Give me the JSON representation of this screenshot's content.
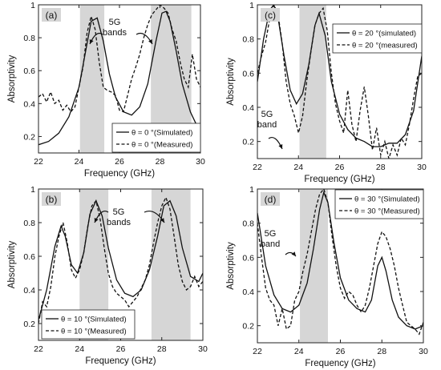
{
  "chart_data": [
    {
      "type": "line",
      "panel_label": "(a)",
      "xlabel": "Frequency (GHz)",
      "ylabel": "Absorptivity",
      "xlim": [
        22,
        30
      ],
      "ylim": [
        0.1,
        1.0
      ],
      "xticks": [
        22,
        24,
        26,
        28,
        30
      ],
      "yticks": [
        0.2,
        0.4,
        0.6,
        0.8,
        1
      ],
      "grid": false,
      "legend_position": "bottom-right",
      "bands": [
        [
          24.05,
          25.25
        ],
        [
          27.55,
          29.55
        ]
      ],
      "annotation": [
        "5G",
        "bands"
      ],
      "series": [
        {
          "name": "θ = 0 °(Simulated)",
          "style": "solid",
          "x": [
            22,
            22.5,
            23,
            23.5,
            24,
            24.3,
            24.6,
            24.9,
            25.2,
            25.5,
            25.8,
            26.2,
            26.6,
            27,
            27.4,
            27.8,
            28.1,
            28.3,
            28.5,
            28.8,
            29.1,
            29.5,
            30
          ],
          "y": [
            0.15,
            0.17,
            0.22,
            0.32,
            0.5,
            0.7,
            0.9,
            0.92,
            0.78,
            0.58,
            0.44,
            0.35,
            0.33,
            0.38,
            0.52,
            0.78,
            0.95,
            0.96,
            0.9,
            0.72,
            0.52,
            0.35,
            0.22
          ]
        },
        {
          "name": "θ = 0 °(Measured)",
          "style": "dashed",
          "x": [
            22,
            22.2,
            22.4,
            22.6,
            22.8,
            23,
            23.2,
            23.4,
            23.6,
            23.8,
            24,
            24.2,
            24.4,
            24.6,
            24.8,
            25,
            25.2,
            25.4,
            25.6,
            25.8,
            26,
            26.2,
            26.4,
            26.6,
            26.8,
            27,
            27.2,
            27.4,
            27.6,
            27.8,
            28,
            28.2,
            28.4,
            28.6,
            28.8,
            29,
            29.2,
            29.4,
            29.6,
            29.8,
            30
          ],
          "y": [
            0.44,
            0.46,
            0.41,
            0.47,
            0.4,
            0.42,
            0.36,
            0.39,
            0.35,
            0.38,
            0.5,
            0.62,
            0.83,
            0.93,
            0.85,
            0.65,
            0.5,
            0.48,
            0.47,
            0.45,
            0.36,
            0.35,
            0.45,
            0.55,
            0.62,
            0.7,
            0.8,
            0.88,
            0.94,
            0.97,
            1.0,
            0.98,
            0.95,
            0.85,
            0.78,
            0.65,
            0.55,
            0.5,
            0.7,
            0.55,
            0.5
          ]
        }
      ]
    },
    {
      "type": "line",
      "panel_label": "(b)",
      "xlabel": "Frequency (GHz)",
      "ylabel": "Absorptivity",
      "xlim": [
        22,
        30
      ],
      "ylim": [
        0.1,
        1.0
      ],
      "xticks": [
        22,
        24,
        26,
        28,
        30
      ],
      "yticks": [
        0.2,
        0.4,
        0.6,
        0.8,
        1
      ],
      "grid": false,
      "legend_position": "bottom-left",
      "bands": [
        [
          24.0,
          25.4
        ],
        [
          27.5,
          29.4
        ]
      ],
      "annotation": [
        "5G",
        "bands"
      ],
      "series": [
        {
          "name": "θ = 10 °(Simulated)",
          "style": "solid",
          "x": [
            22,
            22.4,
            22.8,
            23.1,
            23.3,
            23.6,
            23.9,
            24.2,
            24.5,
            24.8,
            25.1,
            25.4,
            25.8,
            26.2,
            26.6,
            27,
            27.4,
            27.8,
            28.1,
            28.4,
            28.7,
            29,
            29.4,
            29.8,
            30
          ],
          "y": [
            0.22,
            0.4,
            0.66,
            0.78,
            0.72,
            0.55,
            0.5,
            0.62,
            0.85,
            0.93,
            0.84,
            0.65,
            0.46,
            0.38,
            0.36,
            0.4,
            0.52,
            0.72,
            0.9,
            0.93,
            0.84,
            0.65,
            0.48,
            0.45,
            0.5
          ]
        },
        {
          "name": "θ = 10 °(Measured)",
          "style": "dashed",
          "x": [
            22,
            22.2,
            22.4,
            22.6,
            22.8,
            23,
            23.2,
            23.4,
            23.6,
            23.8,
            24,
            24.2,
            24.4,
            24.6,
            24.8,
            25,
            25.2,
            25.4,
            25.6,
            25.8,
            26,
            26.2,
            26.4,
            26.6,
            26.8,
            27,
            27.2,
            27.4,
            27.6,
            27.8,
            28,
            28.2,
            28.4,
            28.6,
            28.8,
            29,
            29.2,
            29.4,
            29.6,
            29.8,
            30
          ],
          "y": [
            0.2,
            0.33,
            0.3,
            0.42,
            0.6,
            0.72,
            0.8,
            0.68,
            0.52,
            0.47,
            0.52,
            0.62,
            0.78,
            0.9,
            0.93,
            0.82,
            0.65,
            0.5,
            0.42,
            0.38,
            0.36,
            0.34,
            0.3,
            0.33,
            0.36,
            0.41,
            0.46,
            0.55,
            0.68,
            0.8,
            0.9,
            0.95,
            0.88,
            0.72,
            0.55,
            0.45,
            0.4,
            0.42,
            0.48,
            0.42,
            0.45
          ]
        }
      ]
    },
    {
      "type": "line",
      "panel_label": "(c)",
      "xlabel": "Frequency (GHz)",
      "ylabel": "Absorptivity",
      "xlim": [
        22,
        30
      ],
      "ylim": [
        0.1,
        1.0
      ],
      "xticks": [
        22,
        24,
        26,
        28,
        30
      ],
      "yticks": [
        0.2,
        0.4,
        0.6,
        0.8,
        1
      ],
      "grid": false,
      "legend_position": "top-right",
      "bands": [
        [
          24.05,
          25.35
        ]
      ],
      "annotation": [
        "5G",
        "band"
      ],
      "series": [
        {
          "name": "θ = 20 °(simulated)",
          "style": "solid",
          "x": [
            22,
            22.3,
            22.6,
            22.8,
            23.0,
            23.3,
            23.6,
            23.9,
            24.2,
            24.5,
            24.8,
            25.0,
            25.3,
            25.6,
            26,
            26.4,
            26.8,
            27.2,
            27.6,
            28,
            28.4,
            28.8,
            29.2,
            29.6,
            30
          ],
          "y": [
            0.55,
            0.8,
            0.97,
            1.0,
            0.93,
            0.7,
            0.5,
            0.42,
            0.48,
            0.65,
            0.88,
            0.95,
            0.82,
            0.55,
            0.36,
            0.27,
            0.22,
            0.2,
            0.17,
            0.17,
            0.19,
            0.19,
            0.24,
            0.38,
            0.7
          ]
        },
        {
          "name": "θ = 20 °(measured)",
          "style": "dashed",
          "x": [
            22,
            22.2,
            22.4,
            22.6,
            22.8,
            23,
            23.2,
            23.4,
            23.6,
            23.8,
            24,
            24.2,
            24.4,
            24.6,
            24.8,
            25,
            25.2,
            25.4,
            25.6,
            25.8,
            26,
            26.2,
            26.4,
            26.6,
            26.8,
            27,
            27.2,
            27.4,
            27.6,
            27.8,
            28,
            28.2,
            28.4,
            28.6,
            28.8,
            29,
            29.2,
            29.4,
            29.6,
            29.8,
            30
          ],
          "y": [
            0.6,
            0.7,
            0.78,
            0.92,
            1.0,
            0.95,
            0.78,
            0.55,
            0.42,
            0.35,
            0.25,
            0.35,
            0.55,
            0.72,
            0.88,
            0.95,
            0.98,
            0.85,
            0.6,
            0.42,
            0.32,
            0.25,
            0.5,
            0.3,
            0.2,
            0.38,
            0.52,
            0.35,
            0.15,
            0.28,
            0.12,
            0.2,
            0.1,
            0.18,
            0.12,
            0.22,
            0.18,
            0.3,
            0.45,
            0.58,
            0.6
          ]
        }
      ]
    },
    {
      "type": "line",
      "panel_label": "(d)",
      "xlabel": "Frequency (GHz)",
      "ylabel": "Absorptivity",
      "xlim": [
        22,
        30
      ],
      "ylim": [
        0.1,
        1.0
      ],
      "xticks": [
        22,
        24,
        26,
        28,
        30
      ],
      "yticks": [
        0.2,
        0.4,
        0.6,
        0.8,
        1
      ],
      "grid": false,
      "legend_position": "top-right",
      "bands": [
        [
          24.05,
          25.4
        ]
      ],
      "annotation": [
        "5G",
        "band"
      ],
      "series": [
        {
          "name": "θ = 30 °(Simulated)",
          "style": "solid",
          "x": [
            22,
            22.4,
            22.8,
            23.2,
            23.6,
            24,
            24.4,
            24.7,
            25,
            25.2,
            25.4,
            25.7,
            26,
            26.4,
            26.8,
            27.2,
            27.5,
            27.8,
            28,
            28.2,
            28.5,
            28.8,
            29.2,
            29.6,
            30
          ],
          "y": [
            0.86,
            0.55,
            0.38,
            0.3,
            0.28,
            0.32,
            0.45,
            0.65,
            0.88,
            0.98,
            0.92,
            0.68,
            0.48,
            0.35,
            0.3,
            0.28,
            0.35,
            0.55,
            0.6,
            0.52,
            0.35,
            0.25,
            0.2,
            0.18,
            0.2
          ]
        },
        {
          "name": "θ = 30 °(Measured)",
          "style": "dashed",
          "x": [
            22,
            22.2,
            22.4,
            22.6,
            22.8,
            23,
            23.2,
            23.4,
            23.6,
            23.8,
            24,
            24.2,
            24.4,
            24.6,
            24.8,
            25,
            25.2,
            25.4,
            25.6,
            25.8,
            26,
            26.2,
            26.4,
            26.6,
            26.8,
            27,
            27.2,
            27.4,
            27.6,
            27.8,
            28,
            28.2,
            28.4,
            28.6,
            28.8,
            29,
            29.2,
            29.4,
            29.6,
            29.8,
            30
          ],
          "y": [
            0.8,
            0.6,
            0.42,
            0.35,
            0.32,
            0.2,
            0.3,
            0.18,
            0.2,
            0.35,
            0.4,
            0.52,
            0.62,
            0.75,
            0.88,
            0.97,
            1.0,
            0.92,
            0.72,
            0.55,
            0.42,
            0.36,
            0.4,
            0.38,
            0.32,
            0.28,
            0.32,
            0.42,
            0.55,
            0.68,
            0.75,
            0.72,
            0.65,
            0.55,
            0.42,
            0.32,
            0.22,
            0.2,
            0.18,
            0.15,
            0.22
          ]
        }
      ]
    }
  ]
}
